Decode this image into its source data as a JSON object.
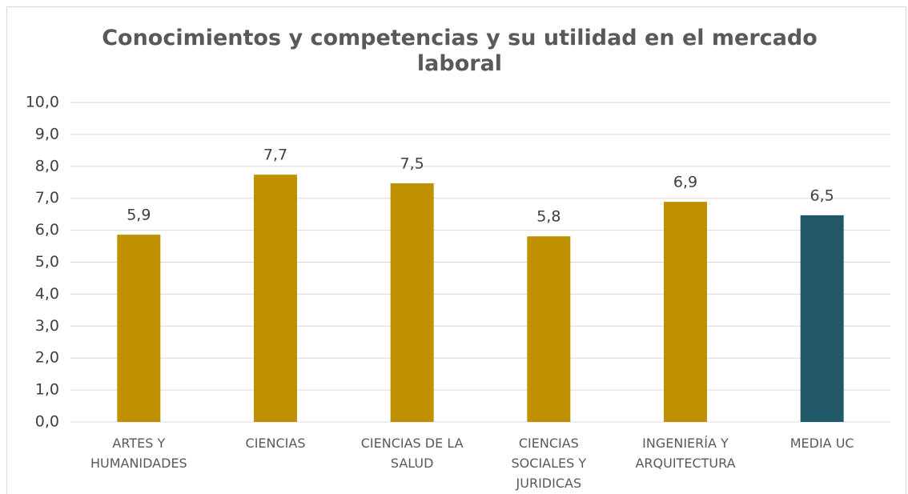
{
  "chart_data": {
    "type": "bar",
    "title": "Conocimientos y competencias y su utilidad en el mercado laboral",
    "categories": [
      "ARTES Y HUMANIDADES",
      "CIENCIAS",
      "CIENCIAS DE LA SALUD",
      "CIENCIAS SOCIALES Y JURIDICAS",
      "INGENIERÍA Y ARQUITECTURA",
      "MEDIA UC"
    ],
    "values": [
      5.86,
      7.74,
      7.47,
      5.81,
      6.89,
      6.47
    ],
    "value_labels": [
      "5,9",
      "7,7",
      "7,5",
      "5,8",
      "6,9",
      "6,5"
    ],
    "colors": [
      "#bf9000",
      "#bf9000",
      "#bf9000",
      "#bf9000",
      "#bf9000",
      "#215868"
    ],
    "ylim": [
      0,
      10
    ],
    "yticks": [
      {
        "value": 0,
        "label": "0,0"
      },
      {
        "value": 1,
        "label": "1,0"
      },
      {
        "value": 2,
        "label": "2,0"
      },
      {
        "value": 3,
        "label": "3,0"
      },
      {
        "value": 4,
        "label": "4,0"
      },
      {
        "value": 5,
        "label": "5,0"
      },
      {
        "value": 6,
        "label": "6,0"
      },
      {
        "value": 7,
        "label": "7,0"
      },
      {
        "value": 8,
        "label": "8,0"
      },
      {
        "value": 9,
        "label": "9,0"
      },
      {
        "value": 10,
        "label": "10,0"
      }
    ],
    "grid": true
  }
}
